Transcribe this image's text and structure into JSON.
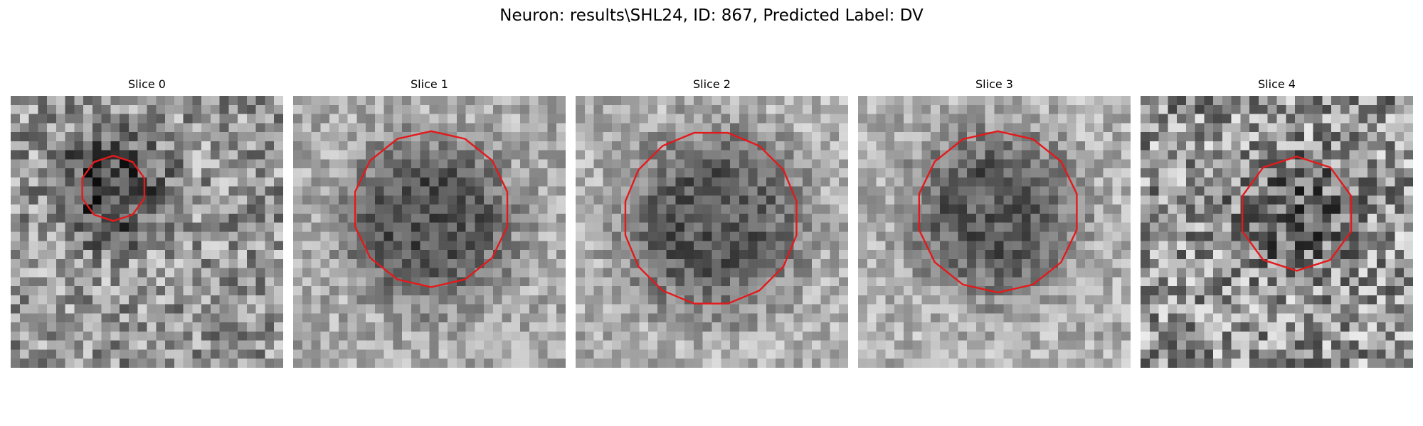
{
  "figure": {
    "title": "Neuron: results\\SHL24, ID: 867, Predicted Label: DV",
    "colormap": "gray",
    "outline_color": "#e31a1c"
  },
  "panels": [
    {
      "title": "Slice 0",
      "noise_seed": 11,
      "noise_amp": 70,
      "base": 150,
      "blob": {
        "cx": 11,
        "cy": 10,
        "r": 7,
        "depth": 75
      },
      "contour": {
        "cx": 11.3,
        "cy": 10.2,
        "r": 3.6,
        "sides": 10
      }
    },
    {
      "title": "Slice 1",
      "noise_seed": 23,
      "noise_amp": 45,
      "base": 170,
      "blob": {
        "cx": 15,
        "cy": 14,
        "r": 10,
        "depth": 85
      },
      "contour": {
        "cx": 15.2,
        "cy": 12.5,
        "r": 8.6,
        "sides": 14
      }
    },
    {
      "title": "Slice 2",
      "noise_seed": 37,
      "noise_amp": 45,
      "base": 175,
      "blob": {
        "cx": 15,
        "cy": 14,
        "r": 11,
        "depth": 85
      },
      "contour": {
        "cx": 14.9,
        "cy": 13.5,
        "r": 9.6,
        "sides": 16
      }
    },
    {
      "title": "Slice 3",
      "noise_seed": 51,
      "noise_amp": 45,
      "base": 175,
      "blob": {
        "cx": 15,
        "cy": 13,
        "r": 10,
        "depth": 85
      },
      "contour": {
        "cx": 15.4,
        "cy": 12.8,
        "r": 8.9,
        "sides": 14
      }
    },
    {
      "title": "Slice 4",
      "noise_seed": 67,
      "noise_amp": 85,
      "base": 150,
      "blob": {
        "cx": 17,
        "cy": 13,
        "r": 7,
        "depth": 45
      },
      "contour": {
        "cx": 17.2,
        "cy": 13.0,
        "r": 6.3,
        "sides": 10
      }
    }
  ]
}
